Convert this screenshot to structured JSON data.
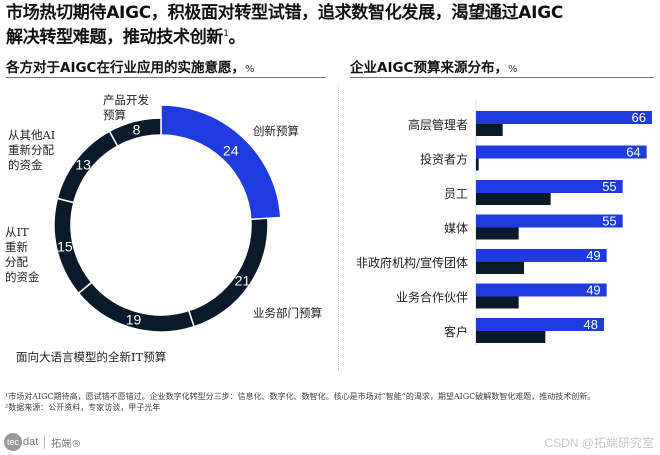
{
  "headline": {
    "line1": "市场热切期待AIGC，积极面对转型试错，追求数智化发展，渴望通过AIGC",
    "line2": "解决转型难题，推动技术创新",
    "sup": "1",
    "end": "。"
  },
  "left_panel": {
    "title": "各方对于AIGC在行业应用的实施意愿，",
    "unit": "%"
  },
  "right_panel": {
    "title": "企业AIGC预算来源分布，",
    "unit": "%"
  },
  "chart_data": [
    {
      "type": "pie",
      "subtype": "donut",
      "title": "各方对于AIGC在行业应用的实施意愿，%",
      "categories": [
        "创新预算",
        "业务部门预算",
        "面向大语言模型的全新IT预算",
        "从IT重新分配的资金",
        "从其他AI重新分配的资金",
        "产品开发预算"
      ],
      "values": [
        24,
        21,
        19,
        15,
        13,
        8
      ],
      "highlight": "创新预算",
      "start_angle": "12 o'clock, clockwise",
      "colors": {
        "highlight": "#1f3be0",
        "default": "#0b1a2a",
        "separator": "#ffffff"
      }
    },
    {
      "type": "bar",
      "orientation": "horizontal",
      "title": "企业AIGC预算来源分布，%",
      "categories": [
        "高层管理者",
        "投资者方",
        "员工",
        "媒体",
        "非政府机构/宣传团体",
        "业务合作伙伴",
        "客户"
      ],
      "series": [
        {
          "name": "primary",
          "color": "#1f3be0",
          "values": [
            66,
            64,
            55,
            55,
            49,
            49,
            48
          ],
          "labeled": true
        },
        {
          "name": "secondary",
          "color": "#0b1a2a",
          "values": [
            10,
            1,
            28,
            16,
            18,
            16,
            26
          ],
          "labeled": false
        }
      ],
      "xlim": [
        0,
        66
      ],
      "grid": false,
      "legend": "none"
    }
  ],
  "donut_labels": {
    "innovation": "创新预算",
    "business": "业务部门预算",
    "new_it": "面向大语言模型的全新IT预算",
    "from_it": [
      "从IT",
      "重新",
      "分配",
      "的资金"
    ],
    "from_ai": [
      "从其他AI",
      "重新分配",
      "的资金"
    ],
    "product": [
      "产品开发",
      "预算"
    ]
  },
  "footnotes": {
    "note1": "¹市场对AIGC期待高，愿试错不愿错过。企业数字化转型分三步：信息化、数字化、数智化。核心是市场对“智能”的渴求，期望AIGC破解数智化难题，推动技术创新。",
    "note2": "²数据来源：公开资料，专家访谈，甲子光年"
  },
  "logo": {
    "mark": "tec",
    "text": "dat",
    "cn": "拓端®"
  },
  "watermark": "CSDN @拓端研究室"
}
